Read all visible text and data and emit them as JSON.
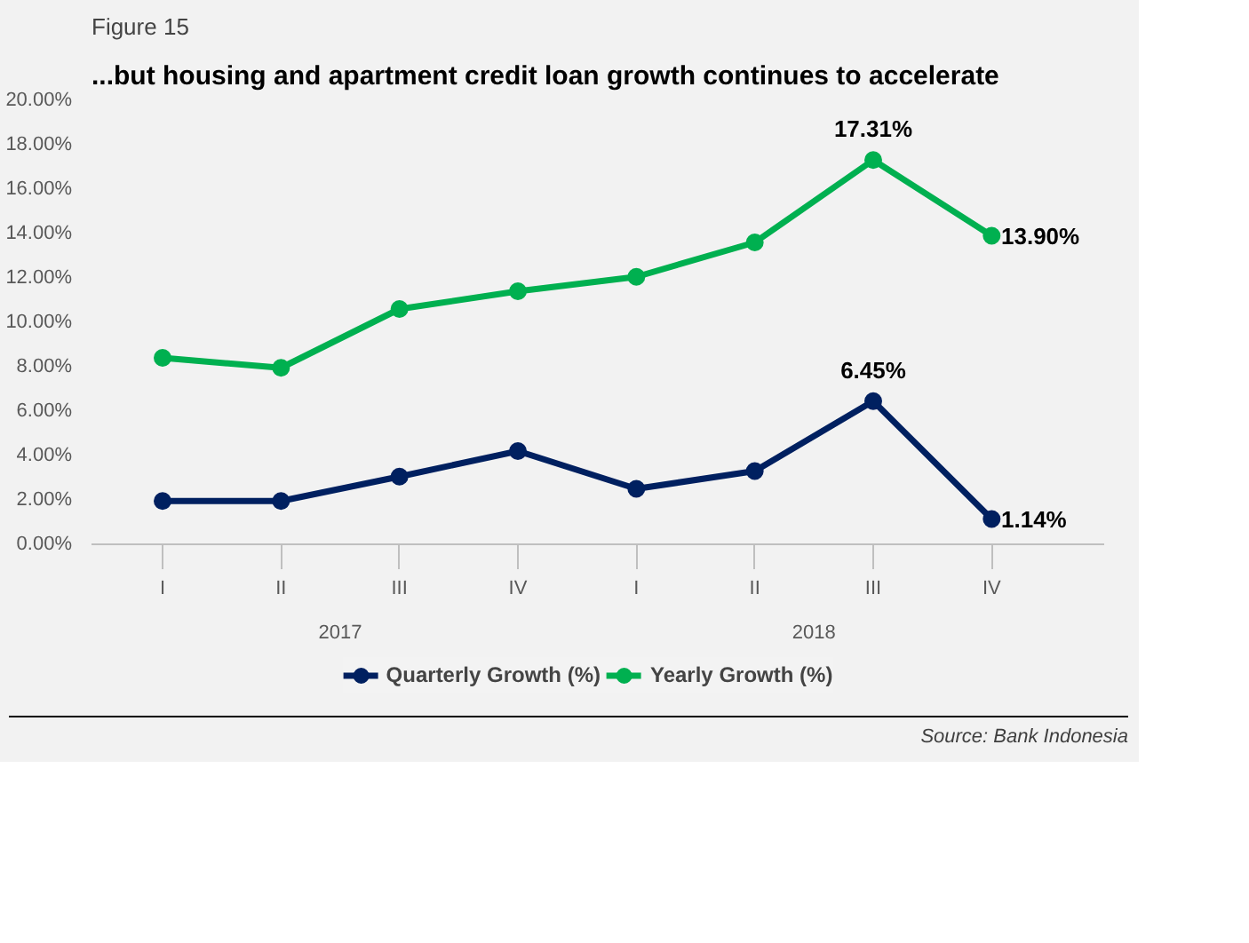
{
  "chart_data": {
    "type": "line",
    "title": "Figure 15",
    "subtitle": "...but housing and apartment credit loan growth continues to accelerate",
    "categories": [
      "I",
      "II",
      "III",
      "IV",
      "I",
      "II",
      "III",
      "IV"
    ],
    "series": [
      {
        "name": "Quarterly Growth (%)",
        "color": "#002060",
        "values": [
          1.95,
          1.95,
          3.05,
          4.2,
          2.5,
          3.3,
          6.45,
          1.14
        ],
        "value_labels": [
          null,
          null,
          null,
          null,
          null,
          null,
          "6.45%",
          "1.14%"
        ]
      },
      {
        "name": "Yearly Growth (%)",
        "color": "#00b050",
        "values": [
          8.4,
          7.95,
          10.6,
          11.4,
          12.05,
          13.6,
          17.31,
          13.9
        ],
        "value_labels": [
          null,
          null,
          null,
          null,
          null,
          null,
          "17.31%",
          "13.90%"
        ]
      }
    ],
    "ylim": [
      0,
      20
    ],
    "yticks": [
      {
        "value": 0,
        "label": "0.00%"
      },
      {
        "value": 2,
        "label": "2.00%"
      },
      {
        "value": 4,
        "label": "4.00%"
      },
      {
        "value": 6,
        "label": "6.00%"
      },
      {
        "value": 8,
        "label": "8.00%"
      },
      {
        "value": 10,
        "label": "10.00%"
      },
      {
        "value": 12,
        "label": "12.00%"
      },
      {
        "value": 14,
        "label": "14.00%"
      },
      {
        "value": 16,
        "label": "16.00%"
      },
      {
        "value": 18,
        "label": "18.00%"
      },
      {
        "value": 20,
        "label": "20.00%"
      }
    ],
    "annotations": [
      "2017",
      "2018",
      "Source: Bank Indonesia"
    ],
    "legend": "bottom",
    "grid": false,
    "marker": "circle",
    "line_style": "solid"
  }
}
